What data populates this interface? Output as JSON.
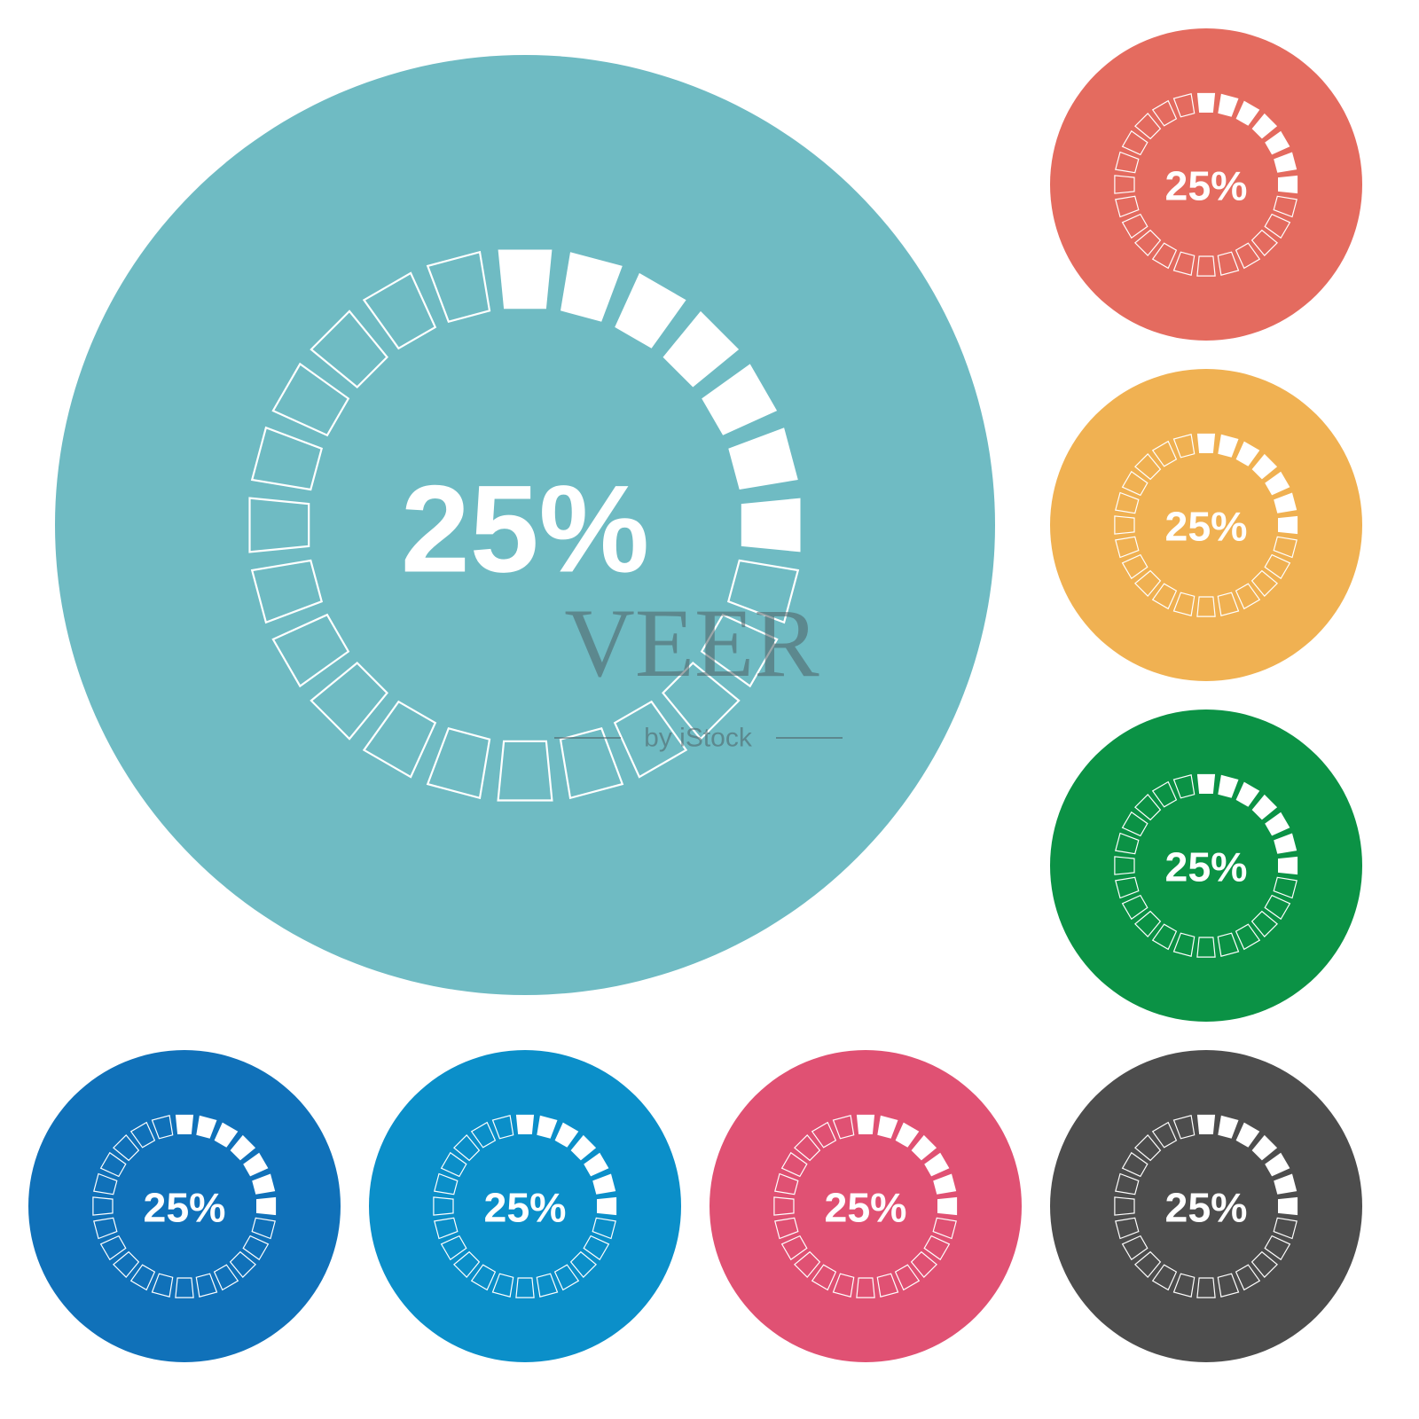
{
  "icons": [
    {
      "color": "#6fbbc3",
      "label": "25%"
    },
    {
      "color": "#e46b5f",
      "label": "25%"
    },
    {
      "color": "#f0b152",
      "label": "25%"
    },
    {
      "color": "#0b9245",
      "label": "25%"
    },
    {
      "color": "#1071b9",
      "label": "25%"
    },
    {
      "color": "#0b8fc9",
      "label": "25%"
    },
    {
      "color": "#e05173",
      "label": "25%"
    },
    {
      "color": "#4d4d4d",
      "label": "25%"
    }
  ],
  "watermark": {
    "title": "VEER",
    "subtitle": "by iStock"
  }
}
